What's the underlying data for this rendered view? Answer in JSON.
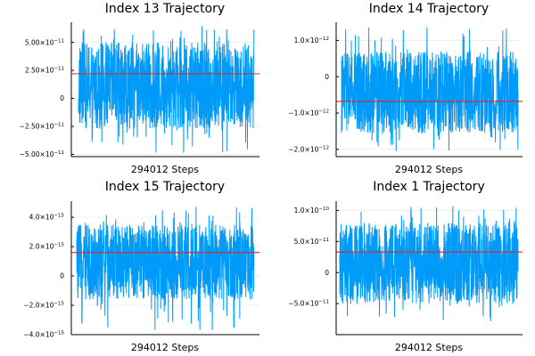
{
  "chart_data": [
    {
      "type": "line",
      "title": "Index 13 Trajectory",
      "xlabel": "294012 Steps",
      "ylabel": "",
      "ylim": [
        -5.2e-11,
        6.8e-11
      ],
      "yticks": [
        -5e-11,
        -2.5e-11,
        0,
        2.5e-11,
        5e-11
      ],
      "ytick_labels": [
        {
          "mant": "−5.00×10",
          "exp": "−11"
        },
        {
          "mant": "−2.50×10",
          "exp": "−11"
        },
        {
          "mant": "0",
          "exp": ""
        },
        {
          "mant": "2.50×10",
          "exp": "−11"
        },
        {
          "mant": "5.00×10",
          "exp": "−11"
        }
      ],
      "series": [
        {
          "values_summary": {
            "mean": 1e-11,
            "band_low": -2.7e-11,
            "band_high": 5e-11,
            "min": -4.9e-11,
            "max": 6.5e-11
          },
          "color": "#009af9"
        },
        {
          "type": "hline",
          "value": 2.2e-11,
          "color": "#e2231a"
        }
      ],
      "grid": true,
      "legend": "none"
    },
    {
      "type": "line",
      "title": "Index 14 Trajectory",
      "xlabel": "294012 Steps",
      "ylabel": "",
      "ylim": [
        -2.2e-12,
        1.5e-12
      ],
      "yticks": [
        -2e-12,
        -1e-12,
        0,
        1e-12
      ],
      "ytick_labels": [
        {
          "mant": "−2.0×10",
          "exp": "−12"
        },
        {
          "mant": "−1.0×10",
          "exp": "−12"
        },
        {
          "mant": "0",
          "exp": ""
        },
        {
          "mant": "1.0×10",
          "exp": "−12"
        }
      ],
      "series": [
        {
          "values_summary": {
            "mean": -5e-13,
            "band_low": -1.55e-12,
            "band_high": 7e-13,
            "min": -2.05e-12,
            "max": 1.45e-12
          },
          "color": "#009af9"
        },
        {
          "type": "hline",
          "value": -6.8e-13,
          "color": "#e2231a"
        }
      ],
      "grid": true,
      "legend": "none"
    },
    {
      "type": "line",
      "title": "Index 15 Trajectory",
      "xlabel": "294012 Steps",
      "ylabel": "",
      "ylim": [
        -4e-15,
        5.1e-15
      ],
      "yticks": [
        -4e-15,
        -2e-15,
        0,
        2e-15,
        4e-15
      ],
      "ytick_labels": [
        {
          "mant": "−4.0×10",
          "exp": "−15"
        },
        {
          "mant": "−2.0×10",
          "exp": "−15"
        },
        {
          "mant": "0",
          "exp": ""
        },
        {
          "mant": "2.0×10",
          "exp": "−15"
        },
        {
          "mant": "4.0×10",
          "exp": "−15"
        }
      ],
      "series": [
        {
          "values_summary": {
            "mean": 1e-15,
            "band_low": -1.6e-15,
            "band_high": 3.5e-15,
            "min": -3.8e-15,
            "max": 4.8e-15
          },
          "color": "#009af9"
        },
        {
          "type": "hline",
          "value": 1.6e-15,
          "color": "#e2231a"
        }
      ],
      "grid": true,
      "legend": "none"
    },
    {
      "type": "line",
      "title": "Index 1 Trajectory",
      "xlabel": "294012 Steps",
      "ylabel": "",
      "ylim": [
        -1e-10,
        1.15e-10
      ],
      "yticks": [
        -5e-11,
        0,
        5e-11,
        1e-10
      ],
      "ytick_labels": [
        {
          "mant": "−5.0×10",
          "exp": "−11"
        },
        {
          "mant": "0",
          "exp": ""
        },
        {
          "mant": "5.0×10",
          "exp": "−11"
        },
        {
          "mant": "1.0×10",
          "exp": "−10"
        }
      ],
      "series": [
        {
          "values_summary": {
            "mean": 1.5e-11,
            "band_low": -5e-11,
            "band_high": 8e-11,
            "min": -8.5e-11,
            "max": 1.1e-10
          },
          "color": "#009af9"
        },
        {
          "type": "hline",
          "value": 3.3e-11,
          "color": "#e2231a"
        }
      ],
      "grid": true,
      "legend": "none"
    }
  ]
}
